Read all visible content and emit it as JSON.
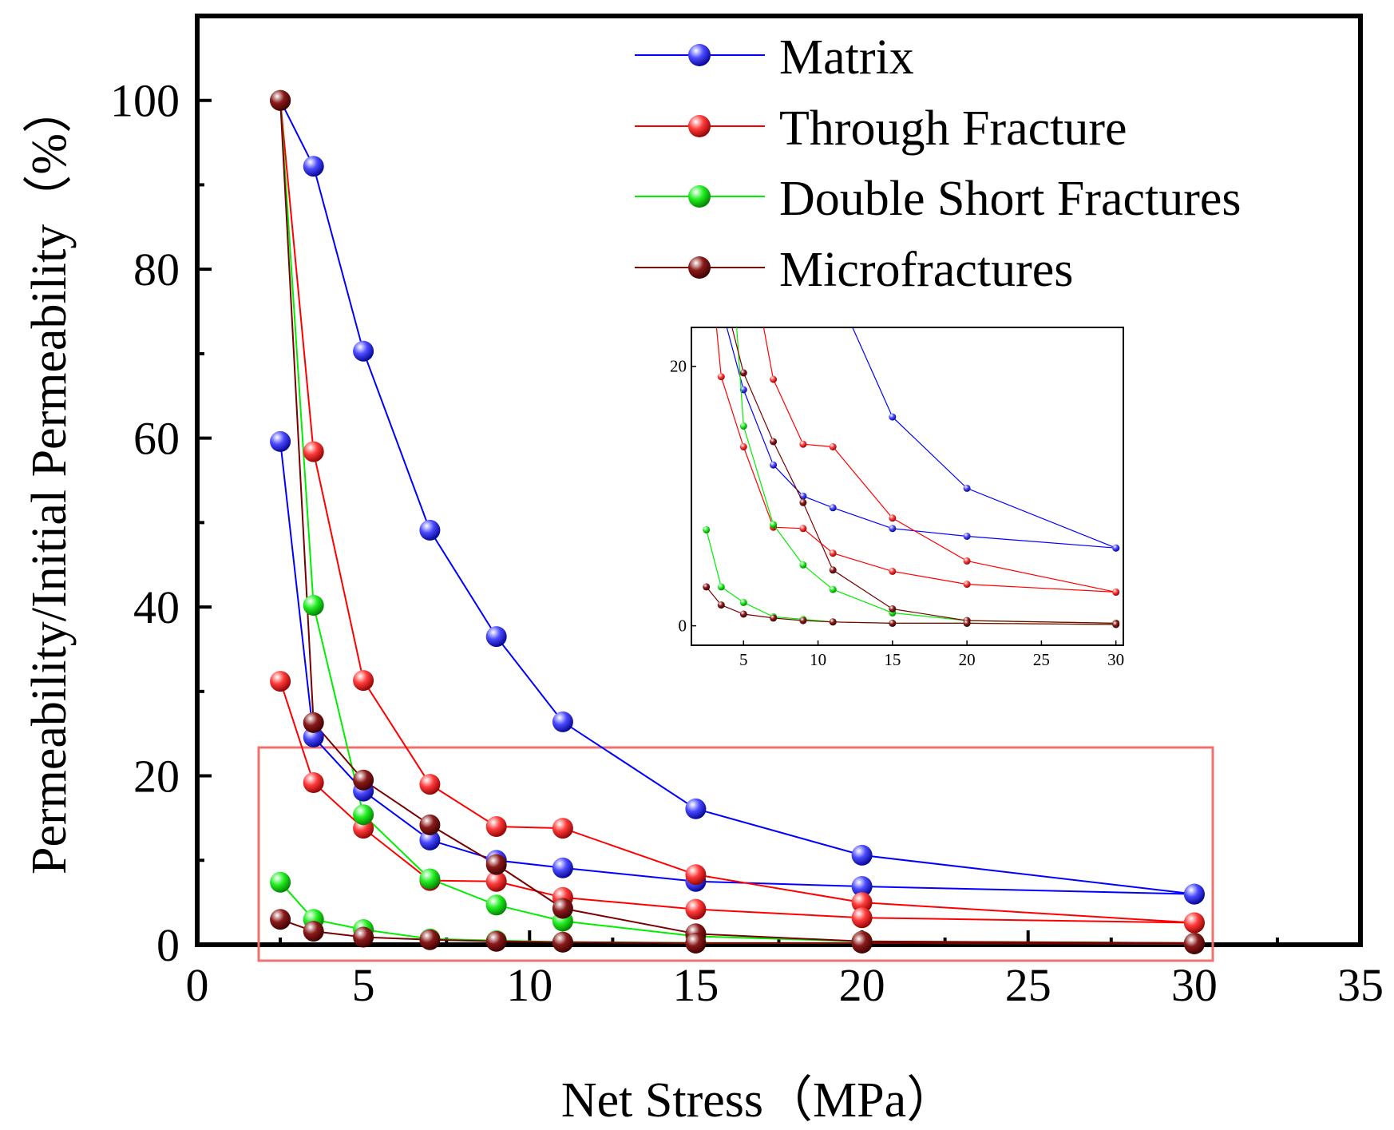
{
  "chart_data": {
    "type": "line",
    "title": "",
    "xlabel": "Net Stress（MPa）",
    "ylabel": "Permeability/Initial Permeability（%）",
    "xlim": [
      0,
      35
    ],
    "ylim": [
      0,
      110
    ],
    "x_ticks": [
      0,
      5,
      10,
      15,
      20,
      25,
      30,
      35
    ],
    "y_ticks": [
      0,
      20,
      40,
      60,
      80,
      100
    ],
    "legend_position": "top-right",
    "series": [
      {
        "name": "Matrix",
        "color": "#0000ff",
        "curves": [
          {
            "x": [
              2.5,
              3.5,
              5,
              7,
              9,
              11,
              15,
              20,
              30
            ],
            "y": [
              100,
              92.2,
              70.3,
              49.1,
              36.5,
              26.4,
              16.1,
              10.6,
              6.0
            ]
          },
          {
            "x": [
              2.5,
              3.5,
              5,
              7,
              9,
              11,
              15,
              20,
              30
            ],
            "y": [
              59.6,
              24.6,
              18.2,
              12.4,
              10.0,
              9.1,
              7.5,
              6.9,
              6.0
            ]
          }
        ]
      },
      {
        "name": "Through Fracture",
        "color": "#ff0000",
        "curves": [
          {
            "x": [
              2.5,
              3.5,
              5,
              7,
              9,
              11,
              15,
              20,
              30
            ],
            "y": [
              100,
              58.4,
              31.3,
              19.0,
              14.0,
              13.8,
              8.3,
              5.0,
              2.6
            ]
          },
          {
            "x": [
              2.5,
              3.5,
              5,
              7,
              9,
              11,
              15,
              20,
              30
            ],
            "y": [
              31.2,
              19.2,
              13.8,
              7.6,
              7.5,
              5.6,
              4.2,
              3.2,
              2.6
            ]
          }
        ]
      },
      {
        "name": "Double Short Fractures",
        "color": "#00ee00",
        "curves": [
          {
            "x": [
              2.5,
              3.5,
              5,
              7,
              9,
              11,
              15,
              20,
              30
            ],
            "y": [
              100,
              40.2,
              15.4,
              7.8,
              4.7,
              2.8,
              1.0,
              0.4,
              0.2
            ]
          },
          {
            "x": [
              2.5,
              3.5,
              5,
              7,
              9,
              11,
              15,
              20,
              30
            ],
            "y": [
              7.4,
              3.0,
              1.8,
              0.7,
              0.5,
              0.3,
              0.2,
              0.2,
              0.1
            ]
          }
        ]
      },
      {
        "name": "Microfractures",
        "color": "#7a0000",
        "curves": [
          {
            "x": [
              2.5,
              3.5,
              5,
              7,
              9,
              11,
              15,
              20,
              30
            ],
            "y": [
              100,
              26.3,
              19.5,
              14.2,
              9.5,
              4.3,
              1.3,
              0.4,
              0.2
            ]
          },
          {
            "x": [
              2.5,
              3.5,
              5,
              7,
              9,
              11,
              15,
              20,
              30
            ],
            "y": [
              3.0,
              1.6,
              0.9,
              0.6,
              0.4,
              0.3,
              0.2,
              0.2,
              0.1
            ]
          }
        ]
      }
    ],
    "inset": {
      "description": "zoom of highlighted region",
      "xlim": [
        1.5,
        30.5
      ],
      "ylim": [
        -1.5,
        23
      ],
      "x_ticks": [
        5,
        10,
        15,
        20,
        25,
        30
      ],
      "y_ticks": [
        0,
        20
      ]
    }
  }
}
